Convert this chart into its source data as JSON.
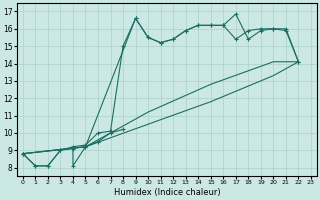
{
  "xlabel": "Humidex (Indice chaleur)",
  "xlim": [
    -0.5,
    23.5
  ],
  "ylim": [
    7.5,
    17.5
  ],
  "xticks": [
    0,
    1,
    2,
    3,
    4,
    5,
    6,
    7,
    8,
    9,
    10,
    11,
    12,
    13,
    14,
    15,
    16,
    17,
    18,
    19,
    20,
    21,
    22,
    23
  ],
  "yticks": [
    8,
    9,
    10,
    11,
    12,
    13,
    14,
    15,
    16,
    17
  ],
  "bg_color": "#cce8e4",
  "grid_color": "#aad0cc",
  "line_color": "#1a6e63",
  "marker": "+",
  "markersize": 3,
  "linewidth": 0.8,
  "s1x": [
    0,
    1,
    2,
    3,
    4,
    4,
    5,
    6,
    7,
    8
  ],
  "s1y": [
    8.8,
    8.1,
    8.1,
    9.0,
    9.1,
    8.1,
    9.2,
    9.5,
    10.0,
    10.2
  ],
  "s2x": [
    0,
    1,
    2,
    3,
    4,
    5,
    6,
    7,
    8,
    9,
    10,
    11,
    12,
    13,
    14,
    15,
    16,
    17,
    18,
    19,
    20,
    21,
    22
  ],
  "s2y": [
    8.8,
    8.1,
    8.1,
    9.0,
    9.2,
    9.3,
    10.0,
    10.1,
    15.0,
    16.6,
    15.5,
    15.2,
    15.4,
    15.9,
    16.2,
    16.2,
    16.2,
    15.4,
    15.9,
    16.0,
    16.0,
    15.9,
    14.1
  ],
  "s3x": [
    0,
    22
  ],
  "s3y": [
    8.8,
    14.1
  ],
  "s4x": [
    0,
    22
  ],
  "s4y": [
    8.8,
    14.1
  ],
  "s5x": [
    0,
    5,
    9,
    10,
    11,
    12,
    13,
    14,
    15,
    16,
    17,
    18,
    19,
    20,
    21,
    22
  ],
  "s5y": [
    8.8,
    9.2,
    16.6,
    15.5,
    15.2,
    15.4,
    15.9,
    16.2,
    16.2,
    16.2,
    16.85,
    15.4,
    15.9,
    16.0,
    16.0,
    14.1
  ],
  "diag1x": [
    0,
    5,
    10,
    15,
    20,
    22
  ],
  "diag1y": [
    8.8,
    9.2,
    11.2,
    12.8,
    14.1,
    14.1
  ],
  "diag2x": [
    0,
    5,
    10,
    15,
    20,
    22
  ],
  "diag2y": [
    8.8,
    9.2,
    10.5,
    11.8,
    13.3,
    14.1
  ]
}
